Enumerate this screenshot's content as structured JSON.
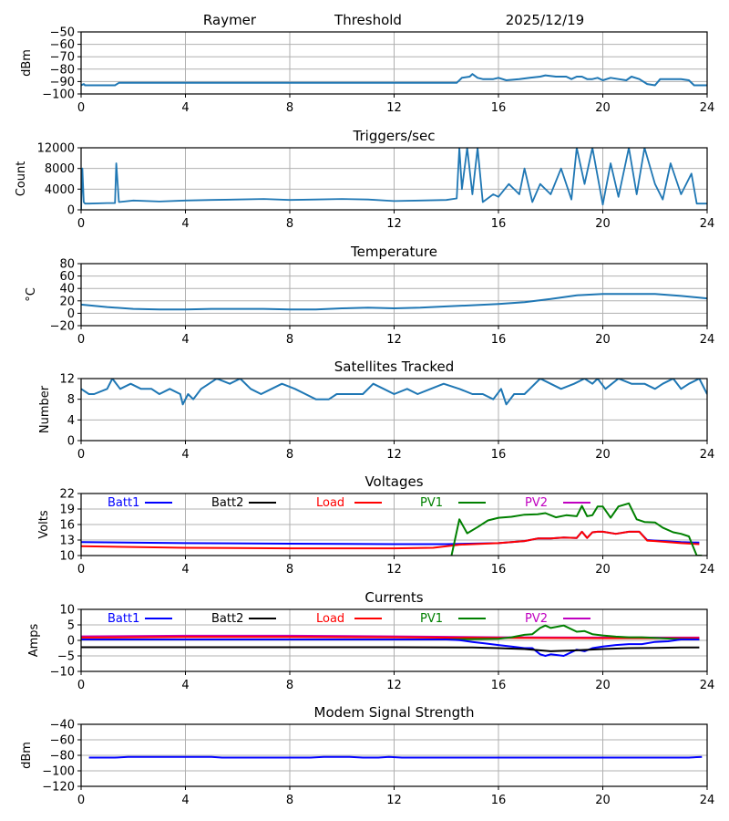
{
  "header": {
    "station": "Raymer",
    "mode": "Threshold",
    "date": "2025/12/19"
  },
  "colors": {
    "default_line": "#1f77b4",
    "Batt1": "#0000ff",
    "Batt2": "#000000",
    "Load": "#ff0000",
    "PV1": "#008000",
    "PV2": "#c000c0"
  },
  "chart_data": [
    {
      "type": "line",
      "title": "",
      "ylabel": "dBm",
      "xlabel": "",
      "xlim": [
        0,
        24
      ],
      "ylim": [
        -100,
        -50
      ],
      "xticks": [
        0,
        4,
        8,
        12,
        16,
        20,
        24
      ],
      "yticks": [
        -100,
        -90,
        -80,
        -70,
        -60,
        -50
      ],
      "grid": true,
      "series": [
        {
          "name": "Threshold",
          "color_key": "default_line",
          "x": [
            0,
            0.1,
            0.15,
            0.3,
            1.3,
            1.45,
            2,
            4,
            6,
            8,
            10,
            12,
            14,
            14.4,
            14.6,
            14.9,
            15.0,
            15.2,
            15.4,
            15.8,
            16,
            16.3,
            16.8,
            17.2,
            17.6,
            17.8,
            18.2,
            18.6,
            18.8,
            19.0,
            19.2,
            19.4,
            19.6,
            19.8,
            20.0,
            20.3,
            20.6,
            20.9,
            21.1,
            21.4,
            21.7,
            22.0,
            22.2,
            22.6,
            23.0,
            23.3,
            23.5,
            24
          ],
          "y": [
            -93,
            -92,
            -93,
            -93,
            -93,
            -91,
            -91,
            -91,
            -91,
            -91,
            -91,
            -91,
            -91,
            -91,
            -87,
            -86,
            -84,
            -87,
            -88,
            -88,
            -87,
            -89,
            -88,
            -87,
            -86,
            -85,
            -86,
            -86,
            -88,
            -86,
            -86,
            -88,
            -88,
            -87,
            -89,
            -87,
            -88,
            -89,
            -86,
            -88,
            -92,
            -93,
            -88,
            -88,
            -88,
            -89,
            -93,
            -93
          ]
        }
      ]
    },
    {
      "type": "line",
      "title": "Triggers/sec",
      "ylabel": "Count",
      "xlabel": "",
      "xlim": [
        0,
        24
      ],
      "ylim": [
        0,
        12000
      ],
      "xticks": [
        0,
        4,
        8,
        12,
        16,
        20,
        24
      ],
      "yticks": [
        0,
        4000,
        8000,
        12000
      ],
      "grid": true,
      "series": [
        {
          "name": "Triggers",
          "color_key": "default_line",
          "x": [
            0,
            0.05,
            0.1,
            0.15,
            0.3,
            1.0,
            1.3,
            1.35,
            1.45,
            2,
            3,
            4,
            5,
            6,
            7,
            8,
            9,
            10,
            11,
            12,
            13,
            14,
            14.4,
            14.5,
            14.6,
            14.8,
            15.0,
            15.2,
            15.4,
            15.8,
            16.0,
            16.4,
            16.8,
            17.0,
            17.3,
            17.6,
            18.0,
            18.4,
            18.8,
            19.0,
            19.3,
            19.6,
            20.0,
            20.3,
            20.6,
            21.0,
            21.3,
            21.6,
            22.0,
            22.3,
            22.6,
            23.0,
            23.4,
            23.6,
            24
          ],
          "y": [
            0,
            8000,
            1500,
            1200,
            1200,
            1300,
            1300,
            9000,
            1500,
            1800,
            1600,
            1800,
            1900,
            2000,
            2100,
            1900,
            2000,
            2100,
            2000,
            1700,
            1800,
            1900,
            2200,
            12000,
            4000,
            12000,
            3000,
            12000,
            1500,
            3000,
            2500,
            5000,
            3000,
            8000,
            1500,
            5000,
            3000,
            8000,
            2000,
            12000,
            5000,
            12000,
            1000,
            9000,
            2500,
            12000,
            3000,
            12000,
            5000,
            2000,
            9000,
            3000,
            7000,
            1200,
            1200
          ]
        }
      ]
    },
    {
      "type": "line",
      "title": "Temperature",
      "ylabel": "°C",
      "xlabel": "",
      "xlim": [
        0,
        24
      ],
      "ylim": [
        -20,
        80
      ],
      "xticks": [
        0,
        4,
        8,
        12,
        16,
        20,
        24
      ],
      "yticks": [
        -20,
        0,
        20,
        40,
        60,
        80
      ],
      "grid": true,
      "series": [
        {
          "name": "Temperature",
          "color_key": "default_line",
          "x": [
            0,
            1,
            2,
            3,
            4,
            5,
            6,
            7,
            8,
            9,
            10,
            11,
            12,
            13,
            14,
            15,
            16,
            17,
            18,
            19,
            20,
            21,
            22,
            23,
            24
          ],
          "y": [
            14,
            10,
            7,
            6,
            6,
            7,
            7,
            7,
            6,
            6,
            8,
            9,
            8,
            9,
            11,
            13,
            15,
            18,
            23,
            29,
            31,
            31,
            31,
            28,
            24
          ]
        }
      ]
    },
    {
      "type": "line",
      "title": "Satellites Tracked",
      "ylabel": "Number",
      "xlabel": "",
      "xlim": [
        0,
        24
      ],
      "ylim": [
        0,
        12
      ],
      "xticks": [
        0,
        4,
        8,
        12,
        16,
        20,
        24
      ],
      "yticks": [
        0,
        4,
        8,
        12
      ],
      "grid": true,
      "series": [
        {
          "name": "Satellites",
          "color_key": "default_line",
          "x": [
            0,
            0.3,
            0.5,
            1.0,
            1.2,
            1.5,
            1.9,
            2.3,
            2.7,
            3.0,
            3.4,
            3.8,
            3.9,
            4.1,
            4.3,
            4.6,
            4.9,
            5.2,
            5.7,
            6.1,
            6.5,
            6.9,
            7.3,
            7.7,
            8.2,
            8.6,
            9.0,
            9.5,
            9.8,
            10.3,
            10.8,
            11.2,
            11.6,
            12.0,
            12.5,
            12.9,
            13.4,
            13.9,
            14.5,
            15.0,
            15.4,
            15.8,
            16.1,
            16.3,
            16.6,
            17.0,
            17.2,
            17.6,
            18.0,
            18.4,
            18.9,
            19.3,
            19.6,
            19.8,
            20.1,
            20.6,
            21.1,
            21.6,
            22.0,
            22.3,
            22.7,
            23.0,
            23.3,
            23.7,
            24
          ],
          "y": [
            10,
            9,
            9,
            10,
            12,
            10,
            11,
            10,
            10,
            9,
            10,
            9,
            7,
            9,
            8,
            10,
            11,
            12,
            11,
            12,
            10,
            9,
            10,
            11,
            10,
            9,
            8,
            8,
            9,
            9,
            9,
            11,
            10,
            9,
            10,
            9,
            10,
            11,
            10,
            9,
            9,
            8,
            10,
            7,
            9,
            9,
            10,
            12,
            11,
            10,
            11,
            12,
            11,
            12,
            10,
            12,
            11,
            11,
            10,
            11,
            12,
            10,
            11,
            12,
            9
          ]
        }
      ]
    },
    {
      "type": "line",
      "title": "Voltages",
      "ylabel": "Volts",
      "xlabel": "",
      "xlim": [
        0,
        24
      ],
      "ylim": [
        10,
        22
      ],
      "xticks": [
        0,
        4,
        8,
        12,
        16,
        20,
        24
      ],
      "yticks": [
        10,
        13,
        16,
        19,
        22
      ],
      "grid": true,
      "legend": [
        "Batt1",
        "Batt2",
        "Load",
        "PV1",
        "PV2"
      ],
      "legend_position": "top, horizontal",
      "series": [
        {
          "name": "Batt1",
          "color_key": "Batt1",
          "x": [
            0,
            4,
            8,
            12,
            14,
            16,
            17,
            17.5,
            18,
            18.5,
            19,
            19.2,
            19.4,
            19.6,
            19.8,
            20,
            20.5,
            21,
            21.4,
            21.7,
            22,
            23,
            23.7
          ],
          "y": [
            12.6,
            12.4,
            12.3,
            12.2,
            12.2,
            12.4,
            12.8,
            13.3,
            13.3,
            13.5,
            13.4,
            14.6,
            13.4,
            14.5,
            14.6,
            14.6,
            14.2,
            14.6,
            14.6,
            13.0,
            12.9,
            12.6,
            12.5
          ]
        },
        {
          "name": "Load",
          "color_key": "Load",
          "x": [
            0,
            4,
            8,
            12,
            13.5,
            14.5,
            16,
            17,
            17.5,
            18,
            18.5,
            19,
            19.2,
            19.4,
            19.6,
            19.8,
            20,
            20.5,
            21,
            21.4,
            21.7,
            22,
            23,
            23.7
          ],
          "y": [
            11.8,
            11.5,
            11.4,
            11.4,
            11.5,
            12.1,
            12.4,
            12.8,
            13.3,
            13.3,
            13.5,
            13.4,
            14.6,
            13.4,
            14.5,
            14.6,
            14.6,
            14.2,
            14.6,
            14.6,
            12.9,
            12.8,
            12.4,
            12.2
          ]
        },
        {
          "name": "PV1",
          "color_key": "PV1",
          "x": [
            14.2,
            14.5,
            14.8,
            15.2,
            15.6,
            16.0,
            16.5,
            17.0,
            17.5,
            17.8,
            18.2,
            18.6,
            19.0,
            19.2,
            19.4,
            19.6,
            19.8,
            20.0,
            20.3,
            20.6,
            21.0,
            21.3,
            21.6,
            22.0,
            22.3,
            22.7,
            23.0,
            23.3,
            23.6,
            23.8
          ],
          "y": [
            10,
            17,
            14.3,
            15.5,
            16.8,
            17.3,
            17.5,
            17.9,
            18.0,
            18.2,
            17.4,
            17.8,
            17.6,
            19.6,
            17.6,
            17.8,
            19.5,
            19.5,
            17.3,
            19.5,
            20.1,
            17.0,
            16.5,
            16.4,
            15.4,
            14.5,
            14.2,
            13.7,
            10,
            10
          ]
        },
        {
          "name": "Batt2",
          "color_key": "Batt2",
          "x": [],
          "y": []
        },
        {
          "name": "PV2",
          "color_key": "PV2",
          "x": [],
          "y": []
        }
      ]
    },
    {
      "type": "line",
      "title": "Currents",
      "ylabel": "Amps",
      "xlabel": "",
      "xlim": [
        0,
        24
      ],
      "ylim": [
        -10,
        10
      ],
      "xticks": [
        0,
        4,
        8,
        12,
        16,
        20,
        24
      ],
      "yticks": [
        -10,
        -5,
        0,
        5,
        10
      ],
      "grid": true,
      "legend": [
        "Batt1",
        "Batt2",
        "Load",
        "PV1",
        "PV2"
      ],
      "legend_position": "top, horizontal",
      "series": [
        {
          "name": "PV2",
          "color_key": "PV2",
          "x": [
            0,
            4,
            8,
            12,
            16,
            20,
            23.7
          ],
          "y": [
            1.3,
            1.5,
            1.5,
            1.3,
            1.0,
            0.9,
            0.9
          ]
        },
        {
          "name": "Load",
          "color_key": "Load",
          "x": [
            0,
            4,
            8,
            12,
            16,
            20,
            23.7
          ],
          "y": [
            0.9,
            1.1,
            1.1,
            1.0,
            0.8,
            0.7,
            0.7
          ]
        },
        {
          "name": "PV1",
          "color_key": "PV1",
          "x": [
            0,
            14,
            16,
            16.5,
            17,
            17.3,
            17.6,
            17.8,
            18.0,
            18.5,
            19.0,
            19.3,
            19.6,
            20.0,
            20.5,
            21.0,
            21.5,
            22.0,
            22.5,
            23.0,
            23.7
          ],
          "y": [
            0.3,
            0.3,
            0.5,
            1.0,
            1.8,
            2.0,
            4.0,
            4.8,
            4.0,
            4.8,
            2.8,
            3.0,
            2.0,
            1.6,
            1.2,
            1.0,
            1.0,
            0.8,
            0.6,
            0.4,
            0.3
          ]
        },
        {
          "name": "Batt1",
          "color_key": "Batt1",
          "x": [
            0,
            12,
            14,
            14.5,
            15,
            15.5,
            16,
            16.5,
            17.0,
            17.3,
            17.6,
            17.8,
            18.0,
            18.5,
            19.0,
            19.3,
            19.6,
            20.0,
            20.5,
            21.0,
            21.5,
            22.0,
            22.5,
            23.0,
            23.7
          ],
          "y": [
            0.3,
            0.3,
            0.3,
            0.1,
            -0.5,
            -1.0,
            -1.5,
            -2.0,
            -2.5,
            -2.5,
            -4.5,
            -5.0,
            -4.5,
            -5.0,
            -3.0,
            -3.5,
            -2.5,
            -2.0,
            -1.5,
            -1.2,
            -1.2,
            -0.5,
            -0.3,
            0.3,
            0.3
          ]
        },
        {
          "name": "Batt2",
          "color_key": "Batt2",
          "x": [
            0,
            4,
            8,
            12,
            15,
            16,
            17,
            18,
            19,
            20,
            21,
            22,
            23,
            23.7
          ],
          "y": [
            -2.2,
            -2.2,
            -2.2,
            -2.2,
            -2.3,
            -2.5,
            -2.8,
            -3.5,
            -3.2,
            -2.8,
            -2.5,
            -2.4,
            -2.3,
            -2.3
          ]
        }
      ]
    },
    {
      "type": "line",
      "title": "Modem Signal Strength",
      "ylabel": "dBm",
      "xlabel": "",
      "xlim": [
        0,
        24
      ],
      "ylim": [
        -120,
        -40
      ],
      "xticks": [
        0,
        4,
        8,
        12,
        16,
        20,
        24
      ],
      "yticks": [
        -120,
        -100,
        -80,
        -60,
        -40
      ],
      "grid": true,
      "series": [
        {
          "name": "Modem",
          "color_key": "Batt1",
          "x": [
            0.3,
            1.3,
            1.8,
            2.5,
            4.5,
            5.0,
            5.4,
            8.8,
            9.3,
            10.3,
            10.8,
            11.4,
            11.8,
            12.3,
            16,
            20,
            23.3,
            23.8
          ],
          "y": [
            -83,
            -83,
            -82,
            -82,
            -82,
            -82,
            -83,
            -83,
            -82,
            -82,
            -83,
            -83,
            -82,
            -83,
            -83,
            -83,
            -83,
            -82
          ]
        }
      ]
    }
  ]
}
